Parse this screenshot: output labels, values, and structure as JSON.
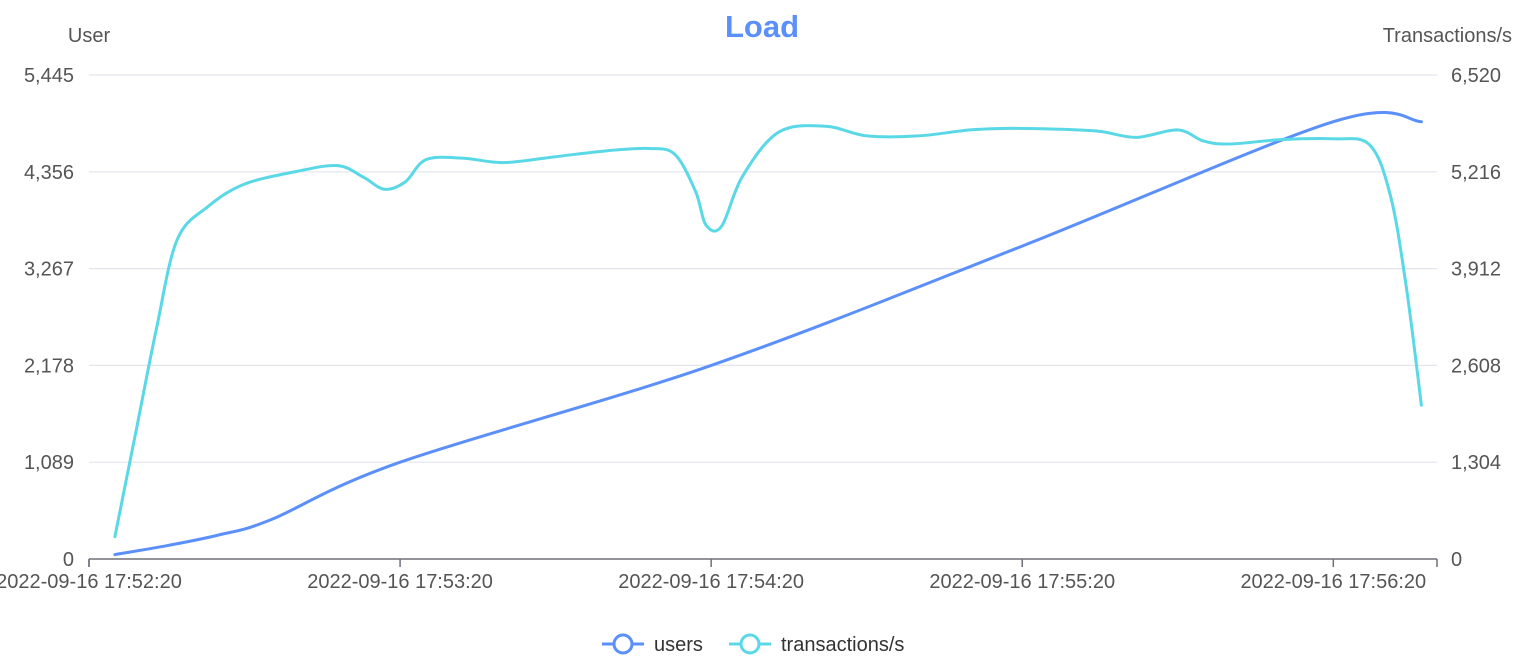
{
  "chart_data": {
    "type": "line",
    "title": "Load",
    "title_color": "#5b8ff9",
    "y_left": {
      "label": "User",
      "ticks": [
        "0",
        "1,089",
        "2,178",
        "3,267",
        "4,356",
        "5,445"
      ],
      "range": [
        0,
        5445
      ]
    },
    "y_right": {
      "label": "Transactions/s",
      "ticks": [
        "0",
        "1,304",
        "2,608",
        "3,912",
        "5,216",
        "6,520"
      ],
      "range": [
        0,
        6520
      ]
    },
    "x": {
      "label": "",
      "ticks": [
        "2022-09-16 17:52:20",
        "2022-09-16 17:53:20",
        "2022-09-16 17:54:20",
        "2022-09-16 17:55:20",
        "2022-09-16 17:56:20"
      ],
      "range": [
        "2022-09-16 17:52:20",
        "2022-09-16 17:56:40"
      ]
    },
    "grid": true,
    "legend_position": "bottom-center",
    "series": [
      {
        "name": "users",
        "axis": "left",
        "color": "#5b8ff9",
        "points": [
          [
            "2022-09-16 17:52:25",
            50
          ],
          [
            "2022-09-16 17:52:35",
            150
          ],
          [
            "2022-09-16 17:52:45",
            270
          ],
          [
            "2022-09-16 17:52:55",
            440
          ],
          [
            "2022-09-16 17:53:20",
            1089
          ],
          [
            "2022-09-16 17:54:20",
            2178
          ],
          [
            "2022-09-16 17:55:20",
            3520
          ],
          [
            "2022-09-16 17:56:20",
            4920
          ],
          [
            "2022-09-16 17:56:37",
            4920
          ]
        ]
      },
      {
        "name": "transactions/s",
        "axis": "right",
        "color": "#5ad8e6",
        "points": [
          [
            "2022-09-16 17:52:25",
            300
          ],
          [
            "2022-09-16 17:52:29",
            1700
          ],
          [
            "2022-09-16 17:52:33",
            3100
          ],
          [
            "2022-09-16 17:52:37",
            4300
          ],
          [
            "2022-09-16 17:52:43",
            4750
          ],
          [
            "2022-09-16 17:52:50",
            5050
          ],
          [
            "2022-09-16 17:53:00",
            5220
          ],
          [
            "2022-09-16 17:53:08",
            5300
          ],
          [
            "2022-09-16 17:53:13",
            5140
          ],
          [
            "2022-09-16 17:53:17",
            4980
          ],
          [
            "2022-09-16 17:53:21",
            5080
          ],
          [
            "2022-09-16 17:53:25",
            5380
          ],
          [
            "2022-09-16 17:53:32",
            5400
          ],
          [
            "2022-09-16 17:53:40",
            5340
          ],
          [
            "2022-09-16 17:53:50",
            5420
          ],
          [
            "2022-09-16 17:54:00",
            5500
          ],
          [
            "2022-09-16 17:54:08",
            5530
          ],
          [
            "2022-09-16 17:54:13",
            5450
          ],
          [
            "2022-09-16 17:54:17",
            4950
          ],
          [
            "2022-09-16 17:54:19",
            4500
          ],
          [
            "2022-09-16 17:54:22",
            4480
          ],
          [
            "2022-09-16 17:54:26",
            5150
          ],
          [
            "2022-09-16 17:54:33",
            5750
          ],
          [
            "2022-09-16 17:54:42",
            5830
          ],
          [
            "2022-09-16 17:54:50",
            5700
          ],
          [
            "2022-09-16 17:55:00",
            5700
          ],
          [
            "2022-09-16 17:55:10",
            5780
          ],
          [
            "2022-09-16 17:55:18",
            5800
          ],
          [
            "2022-09-16 17:55:27",
            5790
          ],
          [
            "2022-09-16 17:55:35",
            5760
          ],
          [
            "2022-09-16 17:55:42",
            5680
          ],
          [
            "2022-09-16 17:55:50",
            5780
          ],
          [
            "2022-09-16 17:55:55",
            5630
          ],
          [
            "2022-09-16 17:56:00",
            5590
          ],
          [
            "2022-09-16 17:56:10",
            5650
          ],
          [
            "2022-09-16 17:56:20",
            5660
          ],
          [
            "2022-09-16 17:56:27",
            5580
          ],
          [
            "2022-09-16 17:56:31",
            4900
          ],
          [
            "2022-09-16 17:56:34",
            3700
          ],
          [
            "2022-09-16 17:56:37",
            2070
          ]
        ]
      }
    ]
  }
}
